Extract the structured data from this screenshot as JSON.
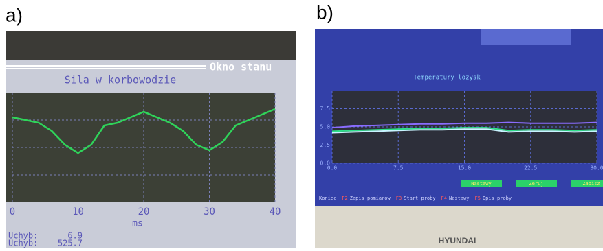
{
  "panels": [
    {
      "label": "a)",
      "window_title": "Okno stanu",
      "chart_data": {
        "type": "line",
        "title": "Sila w korbowodzie",
        "x_label": "ms",
        "x": [
          0,
          2,
          4,
          6,
          8,
          10,
          12,
          14,
          16,
          18,
          20,
          22,
          24,
          26,
          28,
          30,
          32,
          34,
          36,
          38,
          40
        ],
        "series": [
          {
            "color": "#2fd45a",
            "values": [
              3.1,
              3.0,
              2.9,
              2.6,
              2.1,
              1.8,
              2.1,
              2.8,
              2.9,
              3.1,
              3.3,
              3.1,
              2.9,
              2.6,
              2.1,
              1.9,
              2.2,
              2.8,
              3.0,
              3.2,
              3.4
            ]
          }
        ],
        "xlim": [
          0,
          40
        ],
        "xticks": [
          0,
          10,
          20,
          30,
          40
        ],
        "ylim": [
          0,
          4
        ],
        "grid": true
      },
      "status": [
        {
          "label": "Uchyb:",
          "value": 6.9
        },
        {
          "label": "Uchyb:",
          "value": 525.7
        }
      ]
    },
    {
      "label": "b)",
      "chart_data": {
        "type": "line",
        "title": "Temperatury lozysk",
        "x": [
          0,
          2.5,
          5,
          7.5,
          10,
          12.5,
          15,
          17.5,
          20,
          22.5,
          25,
          27.5,
          30
        ],
        "series": [
          {
            "color": "#8a6cff",
            "values": [
              4.9,
              5.1,
              5.2,
              5.3,
              5.4,
              5.4,
              5.5,
              5.5,
              5.6,
              5.5,
              5.5,
              5.5,
              5.6
            ]
          },
          {
            "color": "#2fe08a",
            "values": [
              4.4,
              4.5,
              4.6,
              4.7,
              4.8,
              4.8,
              4.9,
              4.9,
              4.5,
              4.6,
              4.6,
              4.5,
              4.6
            ]
          },
          {
            "color": "#c8f4ff",
            "values": [
              4.2,
              4.3,
              4.4,
              4.5,
              4.6,
              4.6,
              4.7,
              4.7,
              4.3,
              4.4,
              4.4,
              4.3,
              4.4
            ]
          }
        ],
        "xlim": [
          0,
          30
        ],
        "xticks": [
          {
            "value": 0,
            "label": "0.0"
          },
          7.5,
          {
            "value": 15,
            "label": "15.0"
          },
          22.5,
          {
            "value": 30,
            "label": "30.0"
          }
        ],
        "ylim": [
          0,
          10
        ],
        "yticks": [
          {
            "value": 0,
            "label": "0.0"
          },
          2.5,
          {
            "value": 5,
            "label": "5.0"
          },
          7.5
        ],
        "grid": true
      },
      "buttons": [
        "Nastawy",
        "Zeruj",
        "Zapisz"
      ],
      "menu": [
        "Koniec",
        "F2",
        "Zapis pomiarow",
        "F3",
        "Start proby",
        "F4",
        "Nastawy",
        "F5",
        "Opis proby"
      ],
      "brand": "HYUNDAI"
    }
  ]
}
